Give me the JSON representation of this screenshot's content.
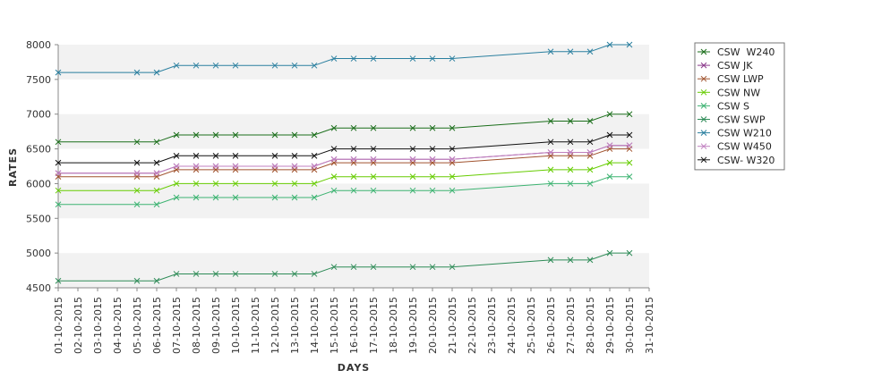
{
  "chart_data": {
    "type": "line",
    "title": "",
    "xlabel": "DAYS",
    "ylabel": "RATES",
    "ylim": [
      4500,
      8000
    ],
    "yticks": [
      4500,
      5000,
      5500,
      6000,
      6500,
      7000,
      7500,
      8000
    ],
    "grid": "alternating horizontal bands",
    "legend_position": "right",
    "x_ticks": [
      "01-10-2015",
      "02-10-2015",
      "03-10-2015",
      "04-10-2015",
      "05-10-2015",
      "06-10-2015",
      "07-10-2015",
      "08-10-2015",
      "09-10-2015",
      "10-10-2015",
      "11-10-2015",
      "12-10-2015",
      "13-10-2015",
      "14-10-2015",
      "15-10-2015",
      "16-10-2015",
      "17-10-2015",
      "18-10-2015",
      "19-10-2015",
      "20-10-2015",
      "21-10-2015",
      "22-10-2015",
      "23-10-2015",
      "24-10-2015",
      "25-10-2015",
      "26-10-2015",
      "27-10-2015",
      "28-10-2015",
      "29-10-2015",
      "30-10-2015",
      "31-10-2015"
    ],
    "x": [
      "01-10-2015",
      "05-10-2015",
      "06-10-2015",
      "07-10-2015",
      "08-10-2015",
      "09-10-2015",
      "10-10-2015",
      "12-10-2015",
      "13-10-2015",
      "14-10-2015",
      "15-10-2015",
      "16-10-2015",
      "17-10-2015",
      "19-10-2015",
      "20-10-2015",
      "21-10-2015",
      "26-10-2015",
      "27-10-2015",
      "28-10-2015",
      "29-10-2015",
      "30-10-2015"
    ],
    "series": [
      {
        "name": "CSW  W240",
        "color": "#1a6e1a",
        "values": [
          6600,
          6600,
          6600,
          6700,
          6700,
          6700,
          6700,
          6700,
          6700,
          6700,
          6800,
          6800,
          6800,
          6800,
          6800,
          6800,
          6900,
          6900,
          6900,
          7000,
          7000
        ]
      },
      {
        "name": "CSW JK",
        "color": "#8b3a8b",
        "values": [
          6150,
          6150,
          6150,
          6250,
          6250,
          6250,
          6250,
          6250,
          6250,
          6250,
          6350,
          6350,
          6350,
          6350,
          6350,
          6350,
          6450,
          6450,
          6450,
          6550,
          6550
        ]
      },
      {
        "name": "CSW LWP",
        "color": "#a0522d",
        "values": [
          6100,
          6100,
          6100,
          6200,
          6200,
          6200,
          6200,
          6200,
          6200,
          6200,
          6300,
          6300,
          6300,
          6300,
          6300,
          6300,
          6400,
          6400,
          6400,
          6500,
          6500
        ]
      },
      {
        "name": "CSW NW",
        "color": "#66cc00",
        "values": [
          5900,
          5900,
          5900,
          6000,
          6000,
          6000,
          6000,
          6000,
          6000,
          6000,
          6100,
          6100,
          6100,
          6100,
          6100,
          6100,
          6200,
          6200,
          6200,
          6300,
          6300
        ]
      },
      {
        "name": "CSW S",
        "color": "#3cb371",
        "values": [
          5700,
          5700,
          5700,
          5800,
          5800,
          5800,
          5800,
          5800,
          5800,
          5800,
          5900,
          5900,
          5900,
          5900,
          5900,
          5900,
          6000,
          6000,
          6000,
          6100,
          6100
        ]
      },
      {
        "name": "CSW SWP",
        "color": "#2e8b57",
        "values": [
          4600,
          4600,
          4600,
          4700,
          4700,
          4700,
          4700,
          4700,
          4700,
          4700,
          4800,
          4800,
          4800,
          4800,
          4800,
          4800,
          4900,
          4900,
          4900,
          5000,
          5000
        ]
      },
      {
        "name": "CSW W210",
        "color": "#2a7f9f",
        "values": [
          7600,
          7600,
          7600,
          7700,
          7700,
          7700,
          7700,
          7700,
          7700,
          7700,
          7800,
          7800,
          7800,
          7800,
          7800,
          7800,
          7900,
          7900,
          7900,
          8000,
          8000
        ]
      },
      {
        "name": "CSW W450",
        "color": "#c080c0",
        "values": [
          6150,
          6150,
          6150,
          6250,
          6250,
          6250,
          6250,
          6250,
          6250,
          6250,
          6350,
          6350,
          6350,
          6350,
          6350,
          6350,
          6450,
          6450,
          6450,
          6550,
          6550
        ]
      },
      {
        "name": "CSW- W320",
        "color": "#111111",
        "values": [
          6300,
          6300,
          6300,
          6400,
          6400,
          6400,
          6400,
          6400,
          6400,
          6400,
          6500,
          6500,
          6500,
          6500,
          6500,
          6500,
          6600,
          6600,
          6600,
          6700,
          6700
        ]
      }
    ]
  }
}
